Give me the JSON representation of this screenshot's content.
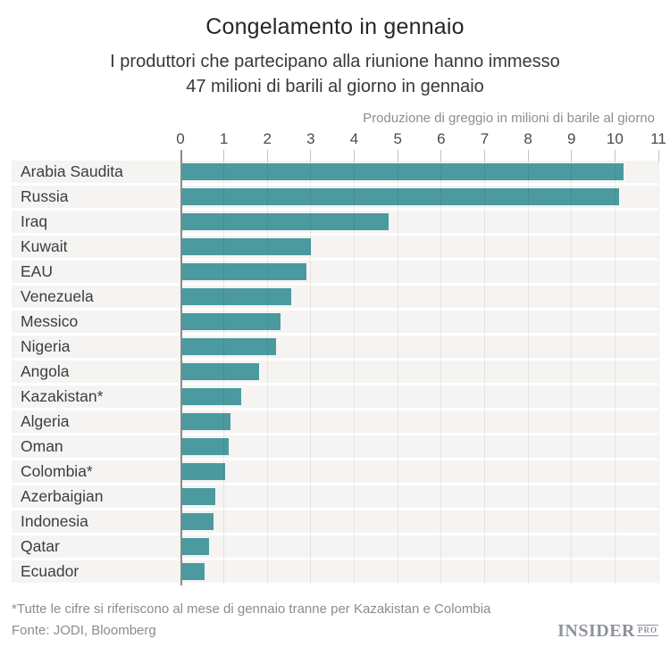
{
  "header": {
    "title": "Congelamento in gennaio",
    "subtitle_line1": "I produttori che partecipano alla riunione hanno immesso",
    "subtitle_line2": "47 milioni di barili al giorno in gennaio"
  },
  "chart_data": {
    "type": "bar",
    "orientation": "horizontal",
    "title": "Congelamento in gennaio",
    "subtitle": "I produttori che partecipano alla riunione hanno immesso 47 milioni di barili al giorno in gennaio",
    "axis_label": "Produzione di greggio in milioni di barile al giorno",
    "x_ticks": [
      0,
      1,
      2,
      3,
      4,
      5,
      6,
      7,
      8,
      9,
      10,
      11
    ],
    "xlim": [
      0,
      11
    ],
    "grid": true,
    "legend": false,
    "bar_color": "#4a9aa0",
    "row_band_color": "#f5f4f2",
    "categories": [
      "Arabia Saudita",
      "Russia",
      "Iraq",
      "Kuwait",
      "EAU",
      "Venezuela",
      "Messico",
      "Nigeria",
      "Angola",
      "Kazakistan*",
      "Algeria",
      "Oman",
      "Colombia*",
      "Azerbaigian",
      "Indonesia",
      "Qatar",
      "Ecuador"
    ],
    "values": [
      10.2,
      10.1,
      4.8,
      3.0,
      2.9,
      2.55,
      2.3,
      2.2,
      1.8,
      1.4,
      1.15,
      1.1,
      1.03,
      0.8,
      0.76,
      0.65,
      0.55
    ]
  },
  "footer": {
    "footnote": "*Tutte le cifre si riferiscono al mese di gennaio tranne per Kazakistan e Colombia",
    "source": "Fonte: JODI, Bloomberg",
    "logo_text": "INSIDER",
    "logo_badge": "PRO"
  }
}
